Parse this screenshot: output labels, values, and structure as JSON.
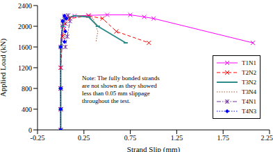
{
  "chart_data": {
    "type": "line",
    "x_label": "Strand Slip (mm)",
    "y_label": "Applied Load (kN)",
    "xlim": [
      -0.25,
      2.25
    ],
    "xticks": [
      -0.25,
      0.25,
      0.75,
      1.25,
      1.75,
      2.25
    ],
    "ylim": [
      0,
      2400
    ],
    "yticks": [
      0,
      400,
      800,
      1200,
      1600,
      2000,
      2400
    ],
    "grid": false,
    "legend": "right",
    "annotation": [
      "Note: The fully bonded strands",
      "are not shown as they showed",
      "less than 0.05 mm slippage",
      "throughout the test."
    ],
    "series": [
      {
        "name": "T1N1",
        "color": "#ff00ff",
        "marker": "x",
        "line_style": "solid",
        "x": [
          0,
          0,
          0,
          0,
          0,
          0.02,
          0.05,
          0.15,
          0.3,
          0.5,
          0.75,
          0.9,
          1.0,
          2.07
        ],
        "values": [
          0,
          400,
          800,
          1200,
          1600,
          2000,
          2150,
          2200,
          2210,
          2220,
          2220,
          2180,
          2150,
          1680
        ]
      },
      {
        "name": "T2N2",
        "color": "#ff0000",
        "marker": "x",
        "line_style": "dashed",
        "x": [
          0,
          0,
          0,
          0,
          0.02,
          0.05,
          0.1,
          0.3,
          0.45,
          0.6,
          0.95
        ],
        "values": [
          0,
          400,
          800,
          1200,
          1800,
          2050,
          2150,
          2200,
          2150,
          1900,
          1680
        ]
      },
      {
        "name": "T3N2",
        "color": "#2e8b8b",
        "marker": "dash",
        "line_style": "solid",
        "x": [
          0,
          0,
          0,
          0,
          0.02,
          0.05,
          0.15,
          0.3,
          0.4,
          0.7
        ],
        "values": [
          0,
          400,
          800,
          1600,
          2000,
          2150,
          2200,
          2180,
          2000,
          1680
        ]
      },
      {
        "name": "T3N4",
        "color": "#a0522d",
        "marker": "none",
        "line_style": "dotted",
        "x": [
          0,
          0,
          0,
          0,
          0.03,
          0.1,
          0.25,
          0.35,
          0.4,
          0.38
        ],
        "values": [
          0,
          400,
          800,
          1600,
          2050,
          2180,
          2210,
          2150,
          1900,
          1700
        ]
      },
      {
        "name": "T4N1",
        "color": "#7030a0",
        "marker": "asterisk",
        "line_style": "dashdot",
        "x": [
          0,
          0,
          0,
          0,
          0.02,
          0.04,
          0.08,
          0.1,
          0.07,
          0.05
        ],
        "values": [
          0,
          400,
          800,
          1600,
          2100,
          2200,
          2210,
          2100,
          1800,
          1600
        ]
      },
      {
        "name": "T4N3",
        "color": "#0000ff",
        "marker": "diamond",
        "line_style": "dotted",
        "x": [
          0,
          0,
          0,
          0,
          0.02,
          0.04,
          0.06,
          0.05,
          0.04
        ],
        "values": [
          0,
          400,
          800,
          1600,
          2100,
          2200,
          2150,
          1900,
          1700
        ]
      }
    ]
  }
}
